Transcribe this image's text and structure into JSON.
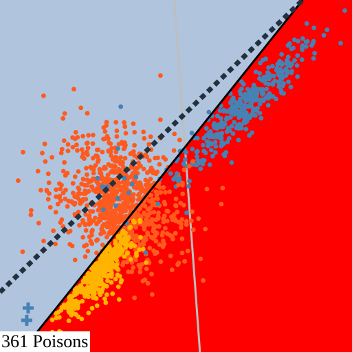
{
  "caption": "361 Poisons",
  "colors": {
    "region_above": "#b0c4de",
    "region_below": "#ff0000",
    "clean_class_a": "#4682b4",
    "clean_class_b": "#ff5a1e",
    "poison_points": "#ffb400",
    "decision_boundary": "#000000",
    "clean_boundary": "#22313f",
    "separator": "#bebebe"
  },
  "chart_data": {
    "type": "scatter",
    "xlim": [
      0,
      1
    ],
    "ylim": [
      0,
      1
    ],
    "grid": false,
    "legend": "none",
    "poison_count": 361,
    "lines": [
      {
        "role": "decision-boundary",
        "style": "solid",
        "points": [
          [
            0.06,
            0.0
          ],
          [
            0.86,
            1.0
          ]
        ]
      },
      {
        "role": "clean-boundary",
        "style": "dotted",
        "points": [
          [
            0.0,
            0.17
          ],
          [
            0.86,
            1.0
          ]
        ]
      },
      {
        "role": "separator",
        "style": "solid",
        "points": [
          [
            0.495,
            1.0
          ],
          [
            0.568,
            0.0
          ]
        ]
      }
    ],
    "series": [
      {
        "role": "class-a",
        "marker": "circle",
        "center": [
          0.7,
          0.7
        ],
        "major_axis": [
          0.707,
          0.707
        ],
        "spread": [
          0.14,
          0.025
        ],
        "count": 360
      },
      {
        "role": "class-b",
        "marker": "circle",
        "center": [
          0.34,
          0.42
        ],
        "major_axis": [
          0.6,
          -0.8
        ],
        "spread": [
          0.1,
          0.075
        ],
        "count": 800
      },
      {
        "role": "class-b-scattered",
        "marker": "circle",
        "center": [
          0.33,
          0.5
        ],
        "major_axis": [
          1,
          0
        ],
        "spread": [
          0.11,
          0.11
        ],
        "count": 80
      },
      {
        "role": "class-a-outliers",
        "marker": "circle",
        "center": [
          0.38,
          0.48
        ],
        "major_axis": [
          1,
          0
        ],
        "spread": [
          0.09,
          0.08
        ],
        "count": 20
      },
      {
        "role": "poison",
        "marker": "circle",
        "center": [
          0.26,
          0.22
        ],
        "major_axis": [
          0.707,
          0.707
        ],
        "spread": [
          0.08,
          0.04
        ],
        "count": 361
      },
      {
        "role": "poison-marker",
        "marker": "plus",
        "points": [
          [
            0.08,
            0.125
          ],
          [
            0.076,
            0.09
          ]
        ]
      }
    ]
  }
}
